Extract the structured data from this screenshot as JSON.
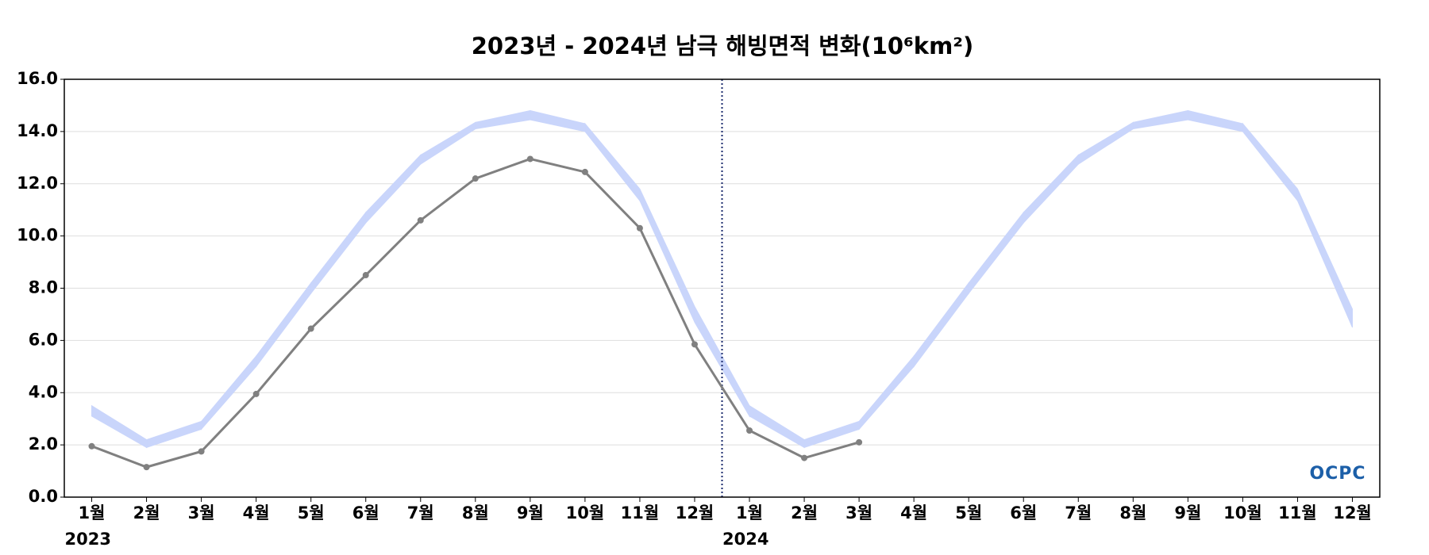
{
  "chart_data": {
    "type": "line",
    "title": "2023년 - 2024년 남극 해빙면적 변화(10⁶km²)",
    "categories": [
      "1월",
      "2월",
      "3월",
      "4월",
      "5월",
      "6월",
      "7월",
      "8월",
      "9월",
      "10월",
      "11월",
      "12월",
      "1월",
      "2월",
      "3월",
      "4월",
      "5월",
      "6월",
      "7월",
      "8월",
      "9월",
      "10월",
      "11월",
      "12월"
    ],
    "years": [
      "2023",
      "2024"
    ],
    "series": [
      {
        "color": "#808080",
        "values": [
          1.95,
          1.15,
          1.75,
          3.95,
          6.45,
          8.5,
          10.6,
          12.2,
          12.95,
          12.45,
          10.3,
          5.85,
          2.55,
          1.5,
          2.1,
          null,
          null,
          null,
          null,
          null,
          null,
          null,
          null,
          null
        ]
      }
    ],
    "band": {
      "color": "#c9d5fb",
      "lower": [
        3.1,
        1.9,
        2.6,
        5.0,
        7.8,
        10.5,
        12.75,
        14.1,
        14.45,
        14.0,
        11.35,
        6.7,
        3.1,
        1.9,
        2.6,
        5.0,
        7.8,
        10.5,
        12.75,
        14.1,
        14.45,
        14.0,
        11.35,
        6.5
      ],
      "upper": [
        3.5,
        2.2,
        2.9,
        5.4,
        8.2,
        10.9,
        13.1,
        14.35,
        14.8,
        14.3,
        11.8,
        7.3,
        3.5,
        2.2,
        2.9,
        5.4,
        8.2,
        10.9,
        13.1,
        14.35,
        14.8,
        14.3,
        11.8,
        7.2
      ]
    },
    "ylim": [
      0,
      16
    ],
    "yticks": [
      {
        "value": 0,
        "label": "0.0"
      },
      {
        "value": 2,
        "label": "2.0"
      },
      {
        "value": 4,
        "label": "4.0"
      },
      {
        "value": 6,
        "label": "6.0"
      },
      {
        "value": 8,
        "label": "8.0"
      },
      {
        "value": 10,
        "label": "10.0"
      },
      {
        "value": 12,
        "label": "12.0"
      },
      {
        "value": 14,
        "label": "14.0"
      },
      {
        "value": 16,
        "label": "16.0"
      }
    ],
    "grid": true,
    "logo": "OCPC"
  }
}
